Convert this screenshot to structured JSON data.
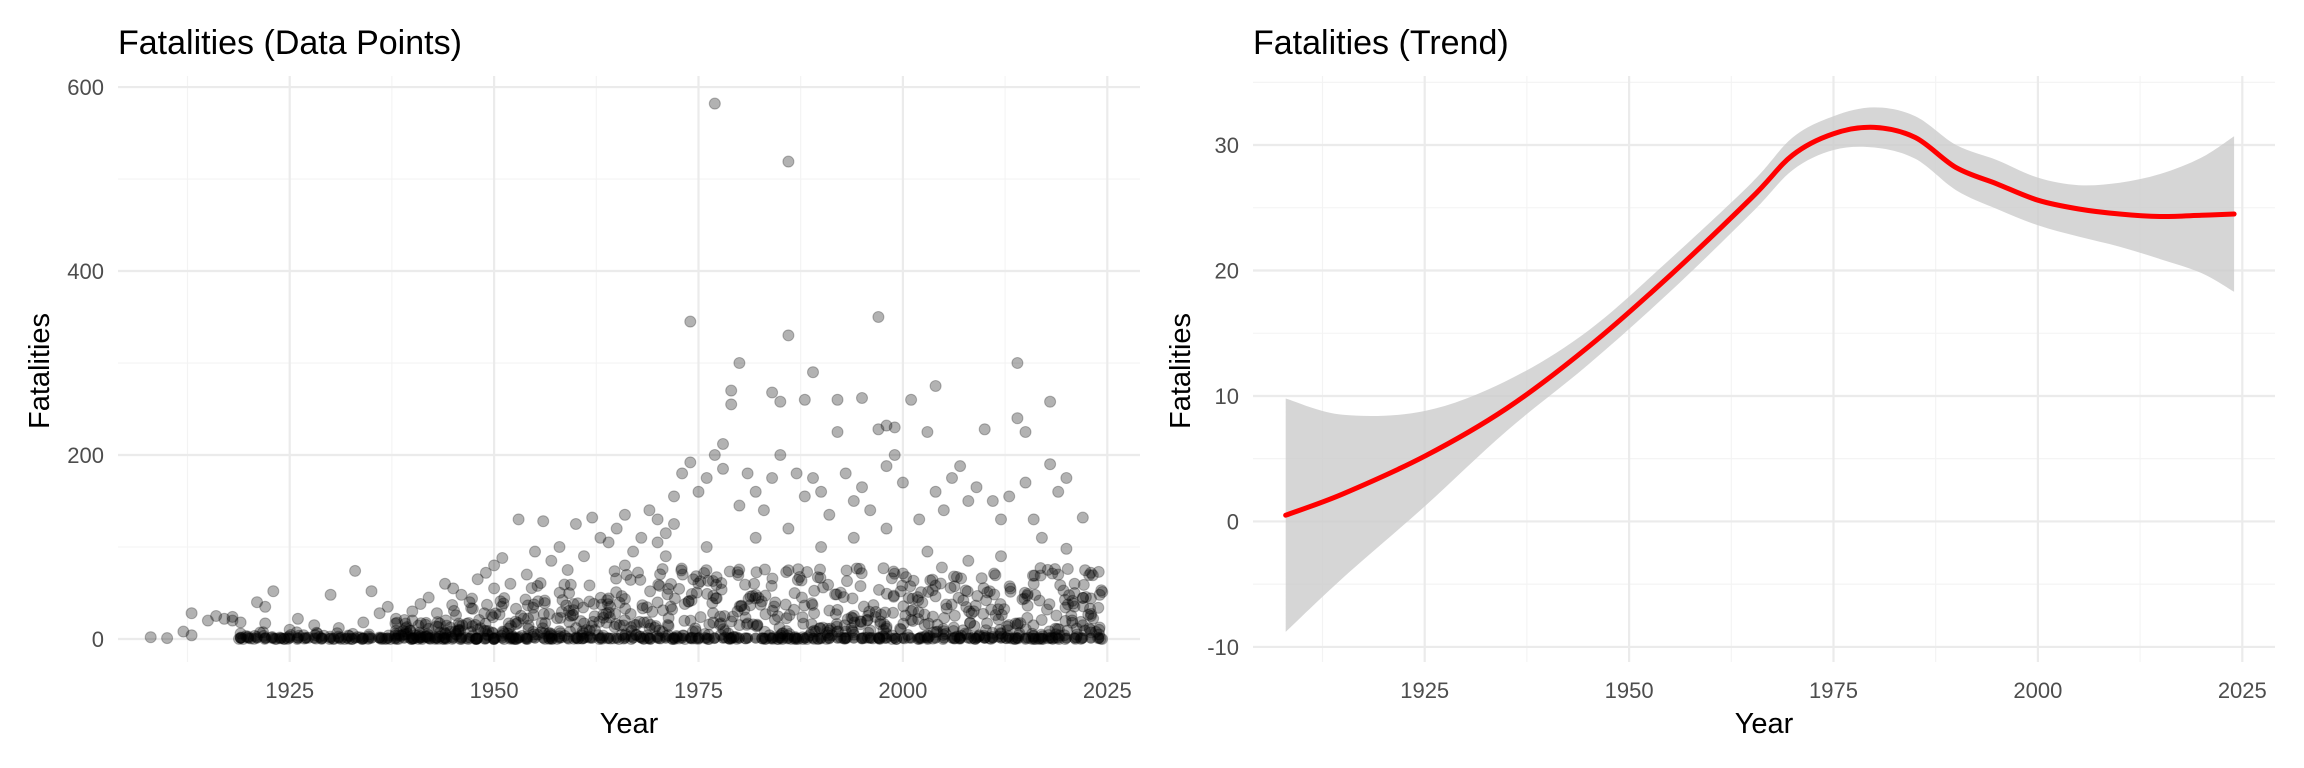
{
  "chart_data": [
    {
      "type": "scatter",
      "title": "Fatalities (Data Points)",
      "xlabel": "Year",
      "ylabel": "Fatalities",
      "xlim": [
        1904,
        2029
      ],
      "ylim": [
        -25,
        612
      ],
      "x_ticks": [
        1925,
        1950,
        1975,
        2000,
        2025
      ],
      "y_ticks": [
        0,
        200,
        400,
        600
      ],
      "x_tick_labels": [
        "1925",
        "1950",
        "1975",
        "2000",
        "2025"
      ],
      "y_tick_labels": [
        "0",
        "200",
        "400",
        "600"
      ],
      "grid": true,
      "point_color": "#000000",
      "point_opacity": 0.3,
      "points": [
        [
          1908,
          2
        ],
        [
          1910,
          1
        ],
        [
          1912,
          8
        ],
        [
          1913,
          28
        ],
        [
          1913,
          4
        ],
        [
          1915,
          20
        ],
        [
          1916,
          25
        ],
        [
          1917,
          22
        ],
        [
          1918,
          20
        ],
        [
          1918,
          24
        ],
        [
          1919,
          18
        ],
        [
          1919,
          6
        ],
        [
          1921,
          40
        ],
        [
          1922,
          35
        ],
        [
          1923,
          52
        ],
        [
          1922,
          17
        ],
        [
          1925,
          10
        ],
        [
          1926,
          22
        ],
        [
          1928,
          15
        ],
        [
          1930,
          48
        ],
        [
          1931,
          12
        ],
        [
          1933,
          74
        ],
        [
          1934,
          18
        ],
        [
          1935,
          52
        ],
        [
          1936,
          28
        ],
        [
          1937,
          35
        ],
        [
          1938,
          22
        ],
        [
          1940,
          30
        ],
        [
          1941,
          38
        ],
        [
          1942,
          45
        ],
        [
          1943,
          28
        ],
        [
          1944,
          60
        ],
        [
          1945,
          55
        ],
        [
          1946,
          48
        ],
        [
          1947,
          40
        ],
        [
          1948,
          65
        ],
        [
          1949,
          72
        ],
        [
          1950,
          80
        ],
        [
          1950,
          55
        ],
        [
          1951,
          88
        ],
        [
          1952,
          60
        ],
        [
          1953,
          130
        ],
        [
          1954,
          70
        ],
        [
          1955,
          95
        ],
        [
          1956,
          128
        ],
        [
          1957,
          85
        ],
        [
          1958,
          100
        ],
        [
          1959,
          75
        ],
        [
          1960,
          125
        ],
        [
          1961,
          90
        ],
        [
          1962,
          132
        ],
        [
          1963,
          110
        ],
        [
          1964,
          105
        ],
        [
          1965,
          120
        ],
        [
          1966,
          135
        ],
        [
          1967,
          95
        ],
        [
          1968,
          110
        ],
        [
          1969,
          140
        ],
        [
          1970,
          130
        ],
        [
          1970,
          105
        ],
        [
          1971,
          115
        ],
        [
          1972,
          155
        ],
        [
          1972,
          125
        ],
        [
          1973,
          180
        ],
        [
          1974,
          192
        ],
        [
          1974,
          345
        ],
        [
          1975,
          160
        ],
        [
          1976,
          175
        ],
        [
          1977,
          582
        ],
        [
          1977,
          200
        ],
        [
          1978,
          212
        ],
        [
          1978,
          185
        ],
        [
          1979,
          255
        ],
        [
          1979,
          270
        ],
        [
          1980,
          300
        ],
        [
          1980,
          145
        ],
        [
          1981,
          180
        ],
        [
          1982,
          160
        ],
        [
          1983,
          140
        ],
        [
          1984,
          268
        ],
        [
          1984,
          175
        ],
        [
          1985,
          258
        ],
        [
          1985,
          200
        ],
        [
          1986,
          330
        ],
        [
          1986,
          519
        ],
        [
          1987,
          180
        ],
        [
          1988,
          155
        ],
        [
          1988,
          260
        ],
        [
          1989,
          290
        ],
        [
          1989,
          175
        ],
        [
          1990,
          160
        ],
        [
          1991,
          135
        ],
        [
          1992,
          225
        ],
        [
          1992,
          260
        ],
        [
          1993,
          180
        ],
        [
          1994,
          150
        ],
        [
          1995,
          262
        ],
        [
          1995,
          165
        ],
        [
          1996,
          140
        ],
        [
          1997,
          350
        ],
        [
          1997,
          228
        ],
        [
          1998,
          232
        ],
        [
          1998,
          188
        ],
        [
          1999,
          230
        ],
        [
          1999,
          200
        ],
        [
          2000,
          170
        ],
        [
          2001,
          260
        ],
        [
          2002,
          130
        ],
        [
          2003,
          225
        ],
        [
          2004,
          275
        ],
        [
          2004,
          160
        ],
        [
          2005,
          140
        ],
        [
          2006,
          175
        ],
        [
          2007,
          188
        ],
        [
          2008,
          150
        ],
        [
          2009,
          165
        ],
        [
          2010,
          228
        ],
        [
          2011,
          150
        ],
        [
          2012,
          130
        ],
        [
          2013,
          155
        ],
        [
          2014,
          300
        ],
        [
          2014,
          240
        ],
        [
          2015,
          225
        ],
        [
          2015,
          170
        ],
        [
          2016,
          130
        ],
        [
          2017,
          110
        ],
        [
          2018,
          258
        ],
        [
          2018,
          190
        ],
        [
          2019,
          160
        ],
        [
          2020,
          175
        ],
        [
          2020,
          98
        ],
        [
          2021,
          60
        ],
        [
          2021,
          50
        ],
        [
          2022,
          132
        ],
        [
          2023,
          72
        ],
        [
          2024,
          10
        ],
        [
          2023,
          25
        ],
        [
          2024,
          5
        ],
        [
          2022,
          15
        ],
        [
          2019,
          70
        ],
        [
          2016,
          60
        ],
        [
          2012,
          90
        ],
        [
          2008,
          85
        ],
        [
          2003,
          95
        ],
        [
          1998,
          120
        ],
        [
          1994,
          110
        ],
        [
          1990,
          100
        ],
        [
          1986,
          120
        ],
        [
          1982,
          110
        ],
        [
          1976,
          100
        ],
        [
          1971,
          90
        ],
        [
          1966,
          80
        ]
      ]
    },
    {
      "type": "line",
      "title": "Fatalities (Trend)",
      "xlabel": "Year",
      "ylabel": "Fatalities",
      "xlim": [
        1904,
        2029
      ],
      "ylim": [
        -11.2,
        35.5
      ],
      "x_ticks": [
        1925,
        1950,
        1975,
        2000,
        2025
      ],
      "y_ticks": [
        -10,
        0,
        10,
        20,
        30
      ],
      "x_tick_labels": [
        "1925",
        "1950",
        "1975",
        "2000",
        "2025"
      ],
      "y_tick_labels": [
        "-10",
        "0",
        "10",
        "20",
        "30"
      ],
      "grid": true,
      "line_color": "#ff0000",
      "band_color": "#cccccc",
      "series": [
        {
          "x": [
            1908,
            1915,
            1925,
            1935,
            1945,
            1955,
            1965,
            1970,
            1975,
            1980,
            1985,
            1990,
            1995,
            2000,
            2005,
            2010,
            2015,
            2020,
            2024
          ],
          "y": [
            0.5,
            2.2,
            5.2,
            9.0,
            13.9,
            19.6,
            25.8,
            29.2,
            30.9,
            31.4,
            30.6,
            28.2,
            26.9,
            25.6,
            24.9,
            24.5,
            24.3,
            24.4,
            24.5
          ],
          "lower": [
            -8.8,
            -4.5,
            1.2,
            7.2,
            12.5,
            18.3,
            24.6,
            28.0,
            29.6,
            29.8,
            28.9,
            26.4,
            24.9,
            23.6,
            22.7,
            21.9,
            20.9,
            19.8,
            18.3
          ],
          "upper": [
            9.8,
            8.5,
            8.8,
            11.2,
            15.2,
            20.9,
            27.0,
            30.6,
            32.3,
            33.0,
            32.3,
            30.0,
            28.8,
            27.4,
            26.8,
            27.0,
            27.7,
            29.0,
            30.7
          ]
        }
      ]
    }
  ]
}
